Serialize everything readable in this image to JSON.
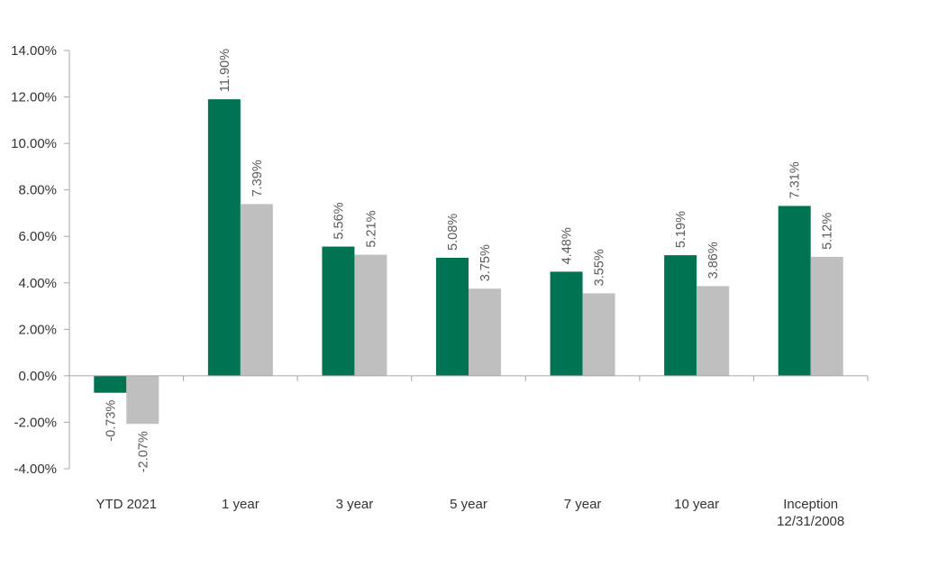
{
  "chart_data": {
    "type": "bar",
    "categories": [
      "YTD 2021",
      "1 year",
      "3 year",
      "5 year",
      "7 year",
      "10 year",
      "Inception\n12/31/2008"
    ],
    "series": [
      {
        "values": [
          -0.73,
          11.9,
          5.56,
          5.08,
          4.48,
          5.19,
          7.31
        ],
        "color": "#007352"
      },
      {
        "values": [
          -2.07,
          7.39,
          5.21,
          3.75,
          3.55,
          3.86,
          5.12
        ],
        "color": "#BFBFBF"
      }
    ],
    "data_labels": [
      [
        "-0.73%",
        "11.90%",
        "5.56%",
        "5.08%",
        "4.48%",
        "5.19%",
        "7.31%"
      ],
      [
        "-2.07%",
        "7.39%",
        "5.21%",
        "3.75%",
        "3.55%",
        "3.86%",
        "5.12%"
      ]
    ],
    "y_ticks": [
      14,
      12,
      10,
      8,
      6,
      4,
      2,
      0,
      -2,
      -4
    ],
    "y_tick_labels": [
      "14.00%",
      "12.00%",
      "10.00%",
      "8.00%",
      "6.00%",
      "4.00%",
      "2.00%",
      "0.00%",
      "-2.00%",
      "-4.00%"
    ],
    "ylim": [
      -4,
      14
    ],
    "title": "",
    "xlabel": "",
    "ylabel": "",
    "grid": false,
    "legend": "none",
    "axis_color": "#A6A6A6"
  }
}
